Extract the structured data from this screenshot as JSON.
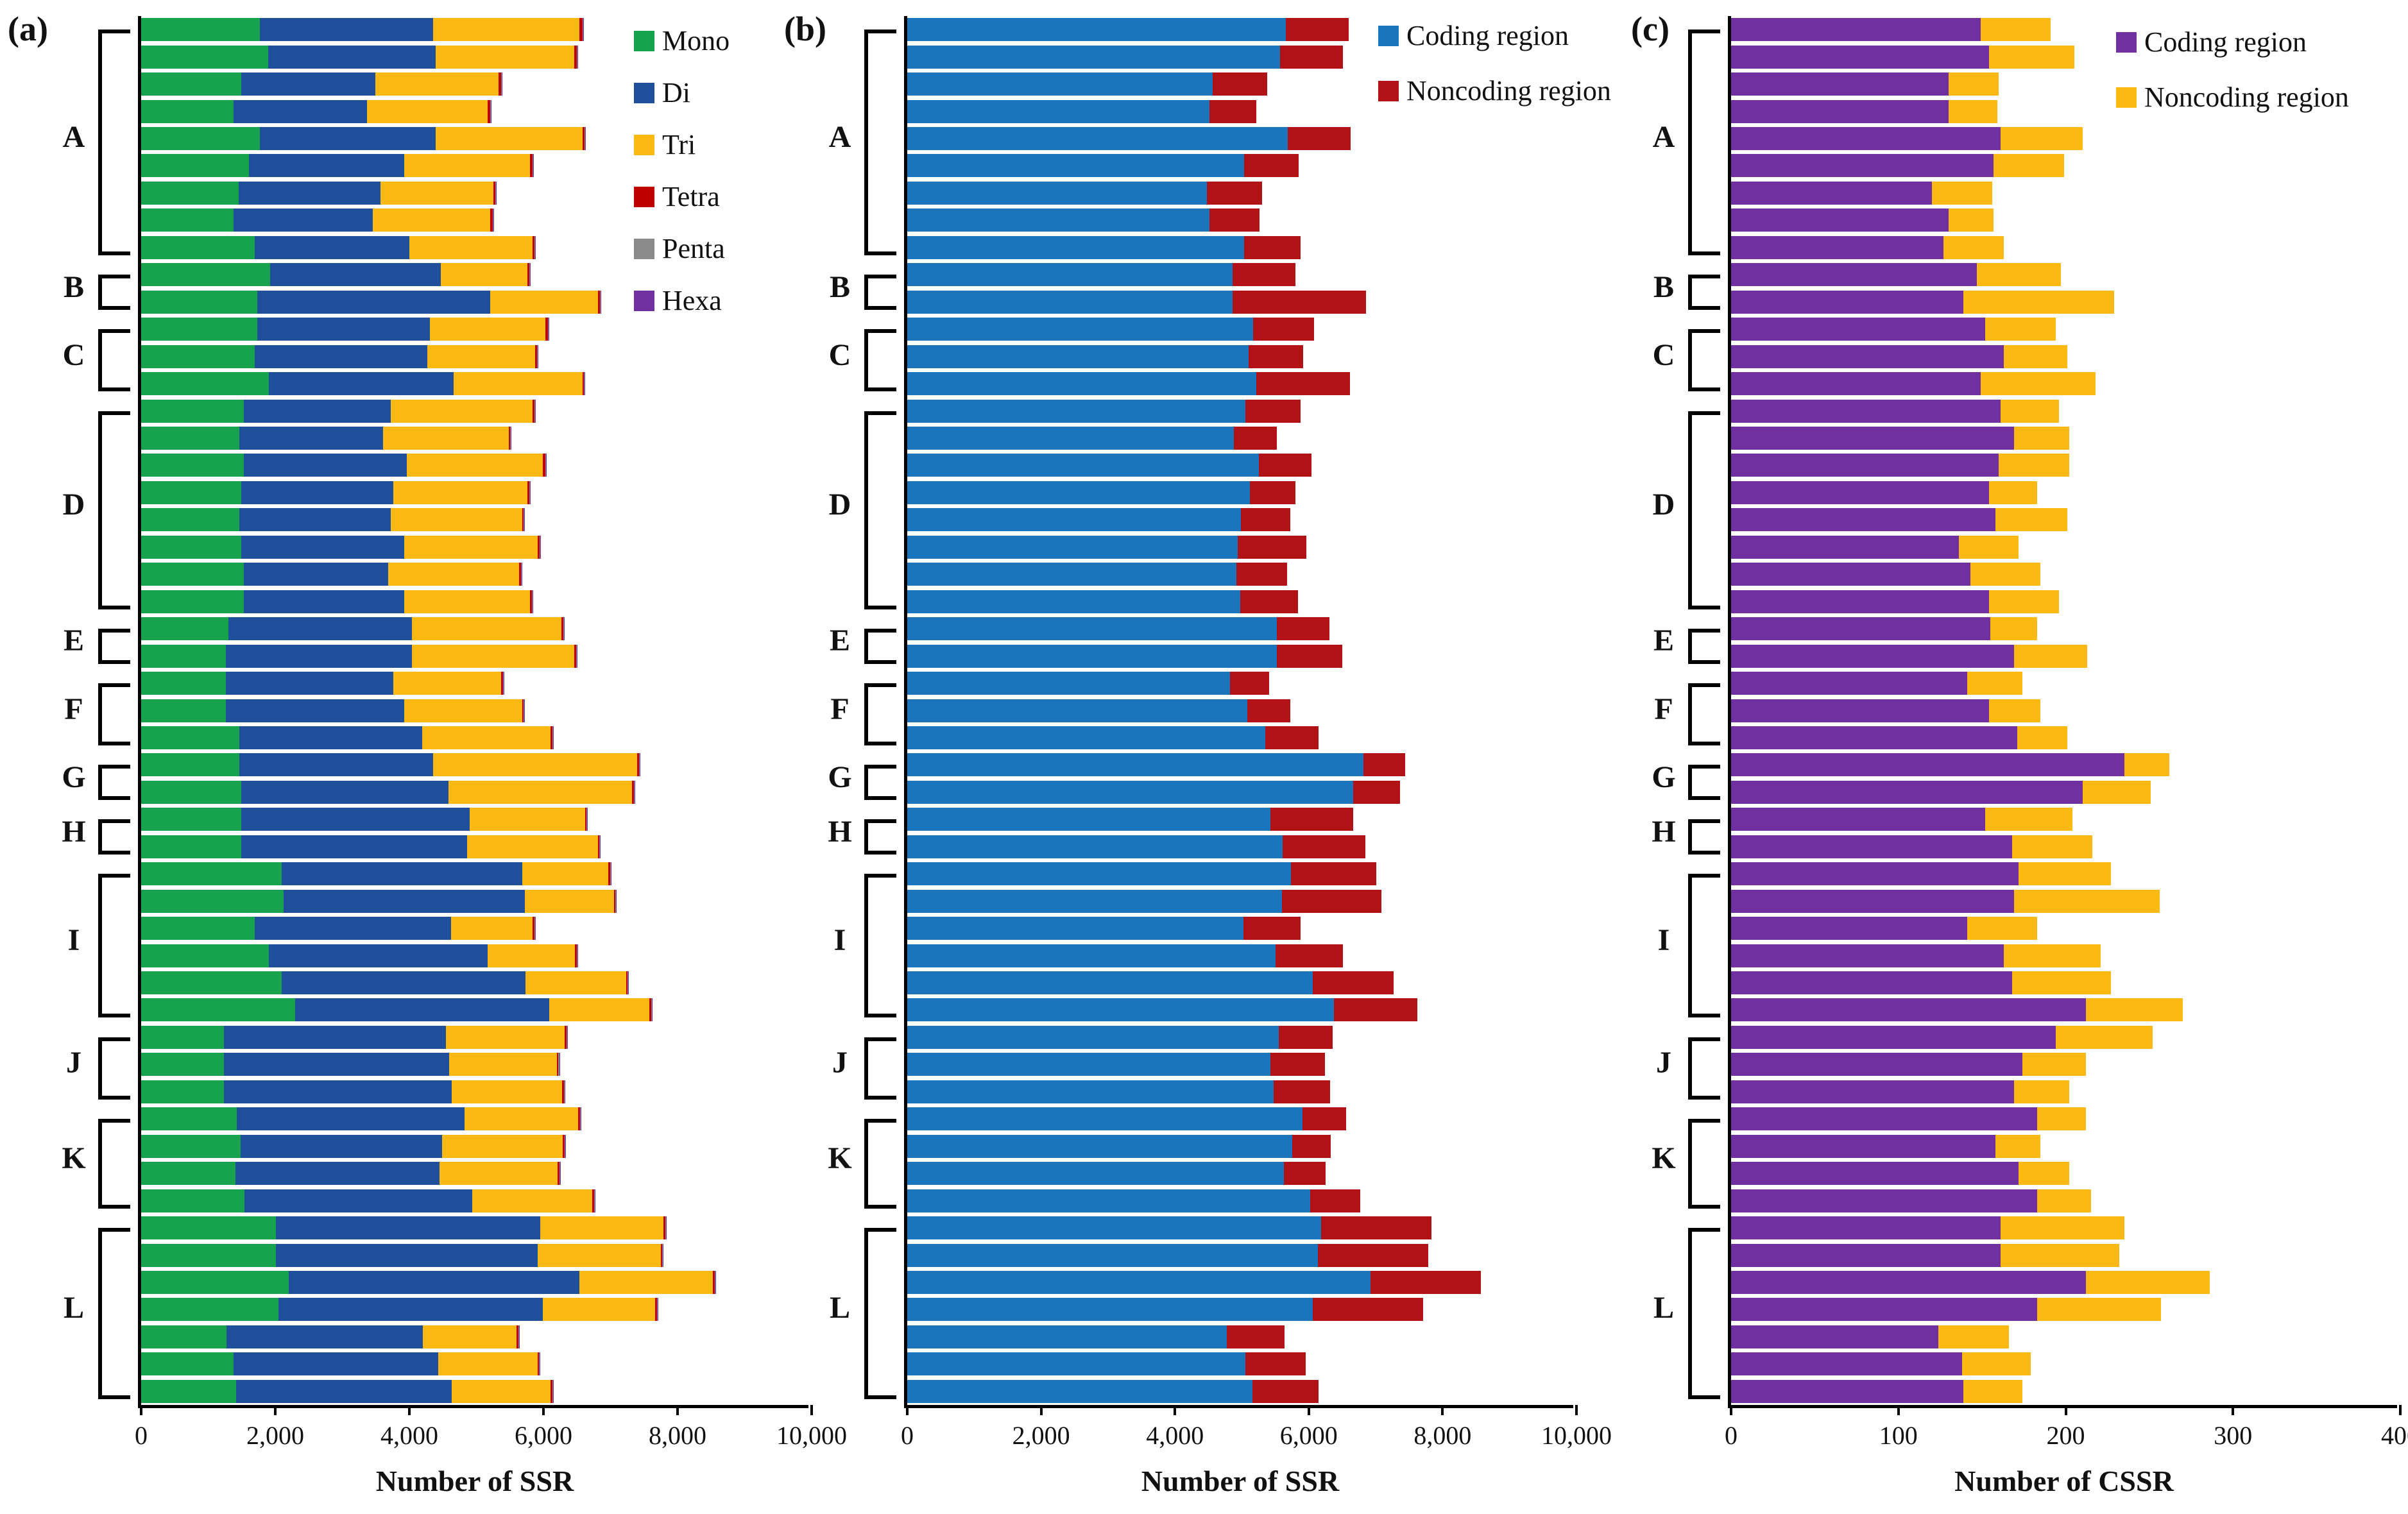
{
  "figure_title": "SSR and CSSR distribution figure",
  "panels": [
    {
      "label": "(a)"
    },
    {
      "label": "(b)"
    },
    {
      "label": "(c)"
    }
  ],
  "chart_data": [
    {
      "panel": "a",
      "type": "bar",
      "orientation": "horizontal-stacked",
      "xlabel": "Number of SSR",
      "xlim": [
        0,
        10000
      ],
      "xtick_values": [
        0,
        2000,
        4000,
        6000,
        8000,
        10000
      ],
      "xtick_labels": [
        "0",
        "2,000",
        "4,000",
        "6,000",
        "8,000",
        "10,000"
      ],
      "legend": [
        {
          "label": "Mono",
          "color": "#17a24d"
        },
        {
          "label": "Di",
          "color": "#1f4e9b"
        },
        {
          "label": "Tri",
          "color": "#fdb913"
        },
        {
          "label": "Tetra",
          "color": "#c00000"
        },
        {
          "label": "Penta",
          "color": "#8a8a8a"
        },
        {
          "label": "Hexa",
          "color": "#7030a0"
        }
      ],
      "groups": [
        {
          "label": "A",
          "count": 9
        },
        {
          "label": "B",
          "count": 2
        },
        {
          "label": "C",
          "count": 3
        },
        {
          "label": "D",
          "count": 8
        },
        {
          "label": "E",
          "count": 2
        },
        {
          "label": "F",
          "count": 3
        },
        {
          "label": "G",
          "count": 2
        },
        {
          "label": "H",
          "count": 2
        },
        {
          "label": "I",
          "count": 6
        },
        {
          "label": "J",
          "count": 3
        },
        {
          "label": "K",
          "count": 4
        },
        {
          "label": "L",
          "count": 7
        }
      ],
      "series_keys": [
        "Mono",
        "Di",
        "Tri",
        "Tetra",
        "Penta",
        "Hexa"
      ],
      "bars": [
        [
          1770,
          2580,
          2190,
          45,
          10,
          5
        ],
        [
          1890,
          2500,
          2070,
          35,
          10,
          5
        ],
        [
          1490,
          2000,
          1840,
          35,
          10,
          5
        ],
        [
          1380,
          1990,
          1800,
          35,
          10,
          5
        ],
        [
          1770,
          2620,
          2190,
          35,
          10,
          5
        ],
        [
          1610,
          2310,
          1880,
          35,
          10,
          5
        ],
        [
          1450,
          2120,
          1680,
          35,
          10,
          5
        ],
        [
          1380,
          2070,
          1760,
          35,
          10,
          5
        ],
        [
          1690,
          2310,
          1840,
          25,
          10,
          5
        ],
        [
          1920,
          2550,
          1290,
          25,
          10,
          5
        ],
        [
          1730,
          3480,
          1600,
          35,
          10,
          5
        ],
        [
          1730,
          2580,
          1720,
          35,
          10,
          5
        ],
        [
          1690,
          2580,
          1610,
          25,
          10,
          5
        ],
        [
          1900,
          2760,
          1920,
          25,
          10,
          5
        ],
        [
          1530,
          2190,
          2120,
          25,
          10,
          5
        ],
        [
          1460,
          2150,
          1870,
          25,
          10,
          5
        ],
        [
          1530,
          2430,
          2030,
          35,
          10,
          5
        ],
        [
          1490,
          2270,
          2000,
          25,
          10,
          5
        ],
        [
          1460,
          2260,
          1960,
          25,
          10,
          5
        ],
        [
          1490,
          2430,
          1990,
          35,
          10,
          5
        ],
        [
          1530,
          2150,
          1960,
          25,
          10,
          5
        ],
        [
          1530,
          2390,
          1880,
          25,
          10,
          5
        ],
        [
          1300,
          2740,
          2230,
          25,
          10,
          5
        ],
        [
          1260,
          2780,
          2420,
          25,
          10,
          5
        ],
        [
          1260,
          2500,
          1610,
          25,
          10,
          5
        ],
        [
          1260,
          2660,
          1760,
          25,
          10,
          5
        ],
        [
          1460,
          2730,
          1920,
          25,
          10,
          5
        ],
        [
          1460,
          2890,
          3050,
          25,
          10,
          5
        ],
        [
          1490,
          3090,
          2740,
          25,
          10,
          5
        ],
        [
          1490,
          3410,
          1720,
          25,
          10,
          5
        ],
        [
          1490,
          3370,
          1950,
          25,
          10,
          5
        ],
        [
          2100,
          3580,
          1290,
          25,
          10,
          5
        ],
        [
          2120,
          3600,
          1330,
          25,
          10,
          5
        ],
        [
          1690,
          2930,
          1220,
          25,
          10,
          5
        ],
        [
          1900,
          3270,
          1300,
          25,
          10,
          5
        ],
        [
          2100,
          3630,
          1500,
          25,
          10,
          5
        ],
        [
          2300,
          3790,
          1490,
          25,
          10,
          5
        ],
        [
          1230,
          3320,
          1770,
          25,
          10,
          5
        ],
        [
          1230,
          3360,
          1610,
          25,
          10,
          5
        ],
        [
          1230,
          3400,
          1650,
          25,
          10,
          5
        ],
        [
          1430,
          3390,
          1700,
          25,
          10,
          5
        ],
        [
          1480,
          3010,
          1800,
          25,
          10,
          5
        ],
        [
          1410,
          3040,
          1760,
          25,
          10,
          5
        ],
        [
          1540,
          3400,
          1790,
          25,
          10,
          5
        ],
        [
          2010,
          3940,
          1840,
          25,
          10,
          5
        ],
        [
          2010,
          3900,
          1840,
          25,
          10,
          5
        ],
        [
          2200,
          4340,
          1990,
          25,
          10,
          5
        ],
        [
          2050,
          3940,
          1680,
          25,
          10,
          5
        ],
        [
          1270,
          2930,
          1400,
          25,
          10,
          5
        ],
        [
          1380,
          3050,
          1480,
          25,
          10,
          5
        ],
        [
          1420,
          3210,
          1480,
          25,
          10,
          5
        ]
      ]
    },
    {
      "panel": "b",
      "type": "bar",
      "orientation": "horizontal-stacked",
      "xlabel": "Number of SSR",
      "xlim": [
        0,
        10000
      ],
      "xtick_values": [
        0,
        2000,
        4000,
        6000,
        8000,
        10000
      ],
      "xtick_labels": [
        "0",
        "2,000",
        "4,000",
        "6,000",
        "8,000",
        "10,000"
      ],
      "legend": [
        {
          "label": "Coding region",
          "color": "#1b75bc"
        },
        {
          "label": "Noncoding region",
          "color": "#b01215"
        }
      ],
      "groups": [
        {
          "label": "A",
          "count": 9
        },
        {
          "label": "B",
          "count": 2
        },
        {
          "label": "C",
          "count": 3
        },
        {
          "label": "D",
          "count": 8
        },
        {
          "label": "E",
          "count": 2
        },
        {
          "label": "F",
          "count": 3
        },
        {
          "label": "G",
          "count": 2
        },
        {
          "label": "H",
          "count": 2
        },
        {
          "label": "I",
          "count": 6
        },
        {
          "label": "J",
          "count": 3
        },
        {
          "label": "K",
          "count": 4
        },
        {
          "label": "L",
          "count": 7
        }
      ],
      "series_keys": [
        "Coding region",
        "Noncoding region"
      ],
      "bars": [
        [
          5660,
          940
        ],
        [
          5570,
          940
        ],
        [
          4560,
          820
        ],
        [
          4520,
          700
        ],
        [
          5690,
          940
        ],
        [
          5030,
          820
        ],
        [
          4480,
          820
        ],
        [
          4520,
          740
        ],
        [
          5030,
          850
        ],
        [
          4860,
          940
        ],
        [
          4860,
          2000
        ],
        [
          5170,
          910
        ],
        [
          5100,
          820
        ],
        [
          5220,
          1400
        ],
        [
          5050,
          830
        ],
        [
          4880,
          640
        ],
        [
          5250,
          790
        ],
        [
          5120,
          680
        ],
        [
          4990,
          730
        ],
        [
          4940,
          1020
        ],
        [
          4920,
          760
        ],
        [
          4980,
          860
        ],
        [
          5520,
          790
        ],
        [
          5520,
          980
        ],
        [
          4820,
          590
        ],
        [
          5080,
          640
        ],
        [
          5350,
          800
        ],
        [
          6820,
          620
        ],
        [
          6660,
          700
        ],
        [
          5430,
          1230
        ],
        [
          5610,
          1240
        ],
        [
          5730,
          1280
        ],
        [
          5600,
          1490
        ],
        [
          5020,
          860
        ],
        [
          5500,
          1010
        ],
        [
          6060,
          1210
        ],
        [
          6380,
          1240
        ],
        [
          5550,
          810
        ],
        [
          5430,
          810
        ],
        [
          5470,
          850
        ],
        [
          5910,
          650
        ],
        [
          5750,
          580
        ],
        [
          5630,
          620
        ],
        [
          6020,
          750
        ],
        [
          6180,
          1650
        ],
        [
          6140,
          1650
        ],
        [
          6920,
          1650
        ],
        [
          6060,
          1650
        ],
        [
          4770,
          870
        ],
        [
          5050,
          900
        ],
        [
          5160,
          990
        ]
      ]
    },
    {
      "panel": "c",
      "type": "bar",
      "orientation": "horizontal-stacked",
      "xlabel": "Number of CSSR",
      "xlim": [
        0,
        400
      ],
      "xtick_values": [
        0,
        100,
        200,
        300,
        400
      ],
      "xtick_labels": [
        "0",
        "100",
        "200",
        "300",
        "400"
      ],
      "legend": [
        {
          "label": "Coding region",
          "color": "#7030a0"
        },
        {
          "label": "Noncoding region",
          "color": "#fdb913"
        }
      ],
      "groups": [
        {
          "label": "A",
          "count": 9
        },
        {
          "label": "B",
          "count": 2
        },
        {
          "label": "C",
          "count": 3
        },
        {
          "label": "D",
          "count": 8
        },
        {
          "label": "E",
          "count": 2
        },
        {
          "label": "F",
          "count": 3
        },
        {
          "label": "G",
          "count": 2
        },
        {
          "label": "H",
          "count": 2
        },
        {
          "label": "I",
          "count": 6
        },
        {
          "label": "J",
          "count": 3
        },
        {
          "label": "K",
          "count": 4
        },
        {
          "label": "L",
          "count": 7
        }
      ],
      "series_keys": [
        "Coding region",
        "Noncoding region"
      ],
      "bars": [
        [
          149,
          42
        ],
        [
          154,
          51
        ],
        [
          130,
          30
        ],
        [
          130,
          29
        ],
        [
          161,
          49
        ],
        [
          157,
          42
        ],
        [
          120,
          36
        ],
        [
          130,
          27
        ],
        [
          127,
          36
        ],
        [
          147,
          50
        ],
        [
          139,
          90
        ],
        [
          152,
          42
        ],
        [
          163,
          38
        ],
        [
          149,
          69
        ],
        [
          161,
          35
        ],
        [
          169,
          33
        ],
        [
          160,
          42
        ],
        [
          154,
          29
        ],
        [
          158,
          43
        ],
        [
          136,
          36
        ],
        [
          143,
          42
        ],
        [
          154,
          42
        ],
        [
          155,
          28
        ],
        [
          169,
          44
        ],
        [
          141,
          33
        ],
        [
          154,
          31
        ],
        [
          171,
          30
        ],
        [
          235,
          27
        ],
        [
          210,
          41
        ],
        [
          152,
          52
        ],
        [
          168,
          48
        ],
        [
          172,
          55
        ],
        [
          169,
          87
        ],
        [
          141,
          42
        ],
        [
          163,
          58
        ],
        [
          168,
          59
        ],
        [
          212,
          58
        ],
        [
          194,
          58
        ],
        [
          174,
          38
        ],
        [
          169,
          33
        ],
        [
          183,
          29
        ],
        [
          158,
          27
        ],
        [
          172,
          30
        ],
        [
          183,
          32
        ],
        [
          161,
          74
        ],
        [
          161,
          71
        ],
        [
          212,
          74
        ],
        [
          183,
          74
        ],
        [
          124,
          42
        ],
        [
          138,
          41
        ],
        [
          139,
          35
        ]
      ]
    }
  ]
}
